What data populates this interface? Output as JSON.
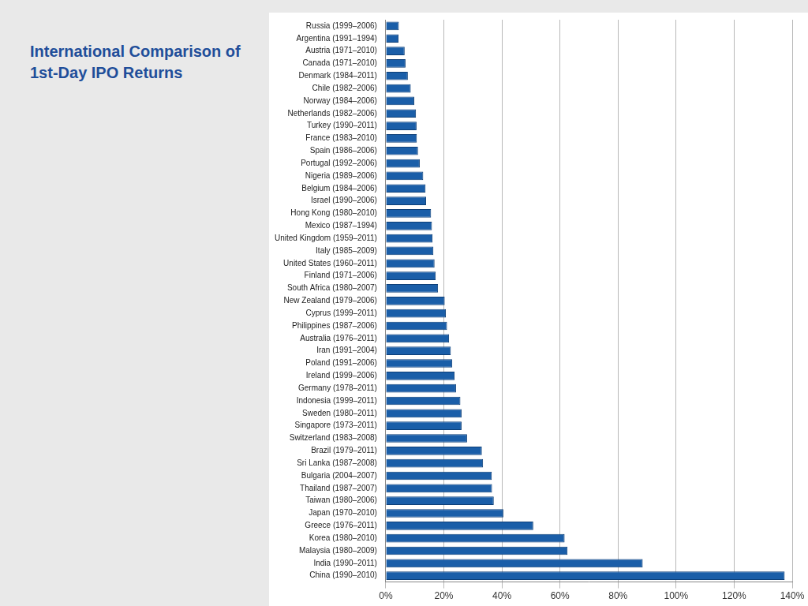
{
  "chart_data": {
    "type": "bar",
    "title": "International Comparison of 1st-Day IPO Returns",
    "orientation": "horizontal",
    "categories": [
      "Russia (1999–2006)",
      "Argentina (1991–1994)",
      "Austria (1971–2010)",
      "Canada (1971–2010)",
      "Denmark (1984–2011)",
      "Chile (1982–2006)",
      "Norway (1984–2006)",
      "Netherlands (1982–2006)",
      "Turkey (1990–2011)",
      "France (1983–2010)",
      "Spain (1986–2006)",
      "Portugal (1992–2006)",
      "Nigeria (1989–2006)",
      "Belgium (1984–2006)",
      "Israel (1990–2006)",
      "Hong Kong (1980–2010)",
      "Mexico (1987–1994)",
      "United Kingdom (1959–2011)",
      "Italy (1985–2009)",
      "United States (1960–2011)",
      "Finland (1971–2006)",
      "South Africa (1980–2007)",
      "New Zealand (1979–2006)",
      "Cyprus (1999–2011)",
      "Philippines (1987–2006)",
      "Australia (1976–2011)",
      "Iran (1991–2004)",
      "Poland (1991–2006)",
      "Ireland (1999–2006)",
      "Germany (1978–2011)",
      "Indonesia (1999–2011)",
      "Sweden (1980–2011)",
      "Singapore (1973–2011)",
      "Switzerland (1983–2008)",
      "Brazil (1979–2011)",
      "Sri Lanka (1987–2008)",
      "Bulgaria (2004–2007)",
      "Thailand (1987–2007)",
      "Taiwan (1980–2006)",
      "Japan (1970–2010)",
      "Greece (1976–2011)",
      "Korea (1980–2010)",
      "Malaysia (1980–2009)",
      "India (1990–2011)",
      "China (1990–2010)"
    ],
    "values": [
      4.5,
      4.4,
      6.5,
      6.8,
      7.6,
      8.6,
      9.8,
      10.4,
      10.6,
      10.7,
      11.1,
      11.7,
      12.9,
      13.7,
      13.9,
      15.6,
      15.9,
      16.1,
      16.4,
      16.8,
      17.2,
      18.0,
      20.3,
      20.7,
      21.1,
      21.8,
      22.4,
      22.9,
      23.7,
      24.2,
      25.7,
      26.1,
      26.1,
      28.0,
      33.1,
      33.5,
      36.5,
      36.6,
      37.2,
      40.5,
      50.8,
      61.6,
      62.6,
      88.5,
      137.4
    ],
    "color": "#1a5ea8",
    "xlim": [
      0,
      140
    ],
    "xticks": [
      {
        "value": 0,
        "label": "0%"
      },
      {
        "value": 20,
        "label": "20%"
      },
      {
        "value": 40,
        "label": "40%"
      },
      {
        "value": 60,
        "label": "60%"
      },
      {
        "value": 80,
        "label": "80%"
      },
      {
        "value": 100,
        "label": "100%"
      },
      {
        "value": 120,
        "label": "120%"
      },
      {
        "value": 140,
        "label": "140%"
      }
    ],
    "grid": true
  }
}
